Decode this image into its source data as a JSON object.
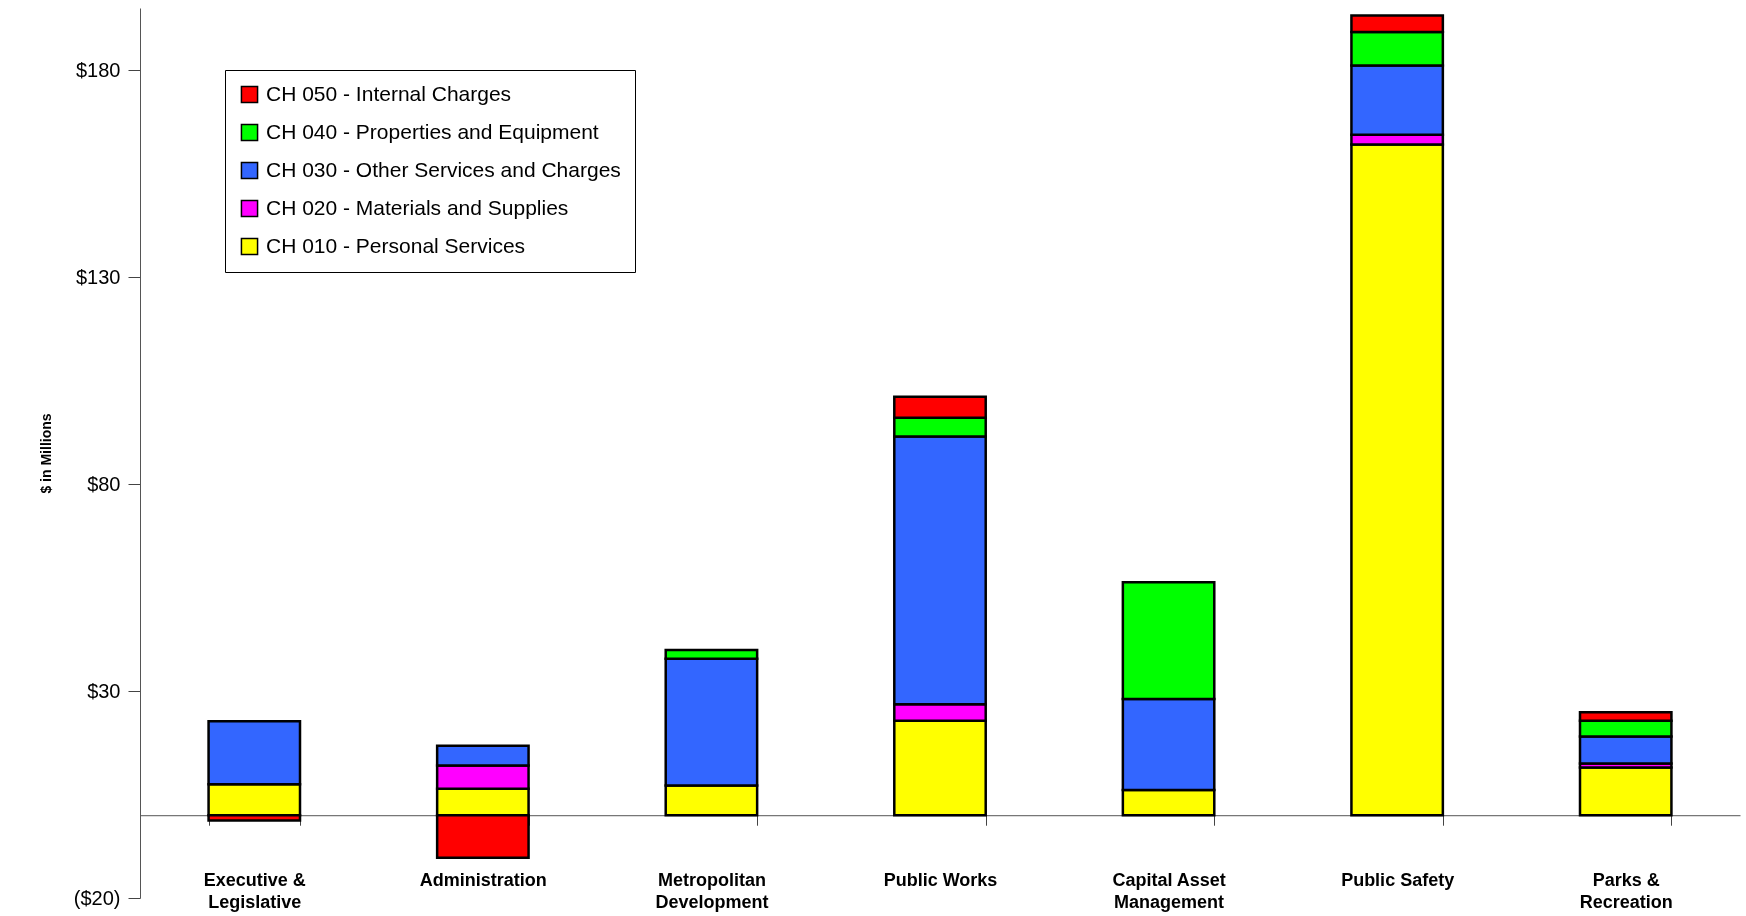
{
  "chart_data": {
    "type": "bar",
    "stacked": true,
    "ylabel": "$ in Millions",
    "categories": [
      "Executive & Legislative",
      "Administration",
      "Metropolitan Development",
      "Public Works",
      "Capital Asset Management",
      "Public Safety",
      "Parks & Recreation"
    ],
    "series": [
      {
        "name": "CH 010 - Personal Services",
        "color": "#ffff00",
        "values": [
          7.5,
          6.4,
          7.2,
          22.8,
          6.1,
          162.0,
          11.5
        ]
      },
      {
        "name": "CH 020 - Materials and Supplies",
        "color": "#ff00ff",
        "values": [
          null,
          5.6,
          null,
          4.0,
          null,
          2.4,
          1.0
        ]
      },
      {
        "name": "CH 030 - Other Services and Charges",
        "color": "#3366ff",
        "values": [
          15.2,
          4.8,
          30.6,
          64.7,
          22.0,
          16.7,
          6.5
        ]
      },
      {
        "name": "CH 040 - Properties and Equipment",
        "color": "#00ff00",
        "values": [
          null,
          null,
          2.1,
          4.5,
          28.2,
          8.1,
          3.8
        ]
      },
      {
        "name": "CH 050 - Internal Charges",
        "color": "#ff0000",
        "values": [
          -1.3,
          -10.3,
          null,
          5.1,
          null,
          4.0,
          2.1
        ]
      }
    ],
    "ylim": [
      -20,
      195
    ],
    "yticks": [
      {
        "value": -20,
        "label": "($20)"
      },
      {
        "value": 30,
        "label": "$30"
      },
      {
        "value": 80,
        "label": "$80"
      },
      {
        "value": 130,
        "label": "$130"
      },
      {
        "value": 180,
        "label": "$180"
      }
    ],
    "grid": false,
    "legend": "top left"
  }
}
